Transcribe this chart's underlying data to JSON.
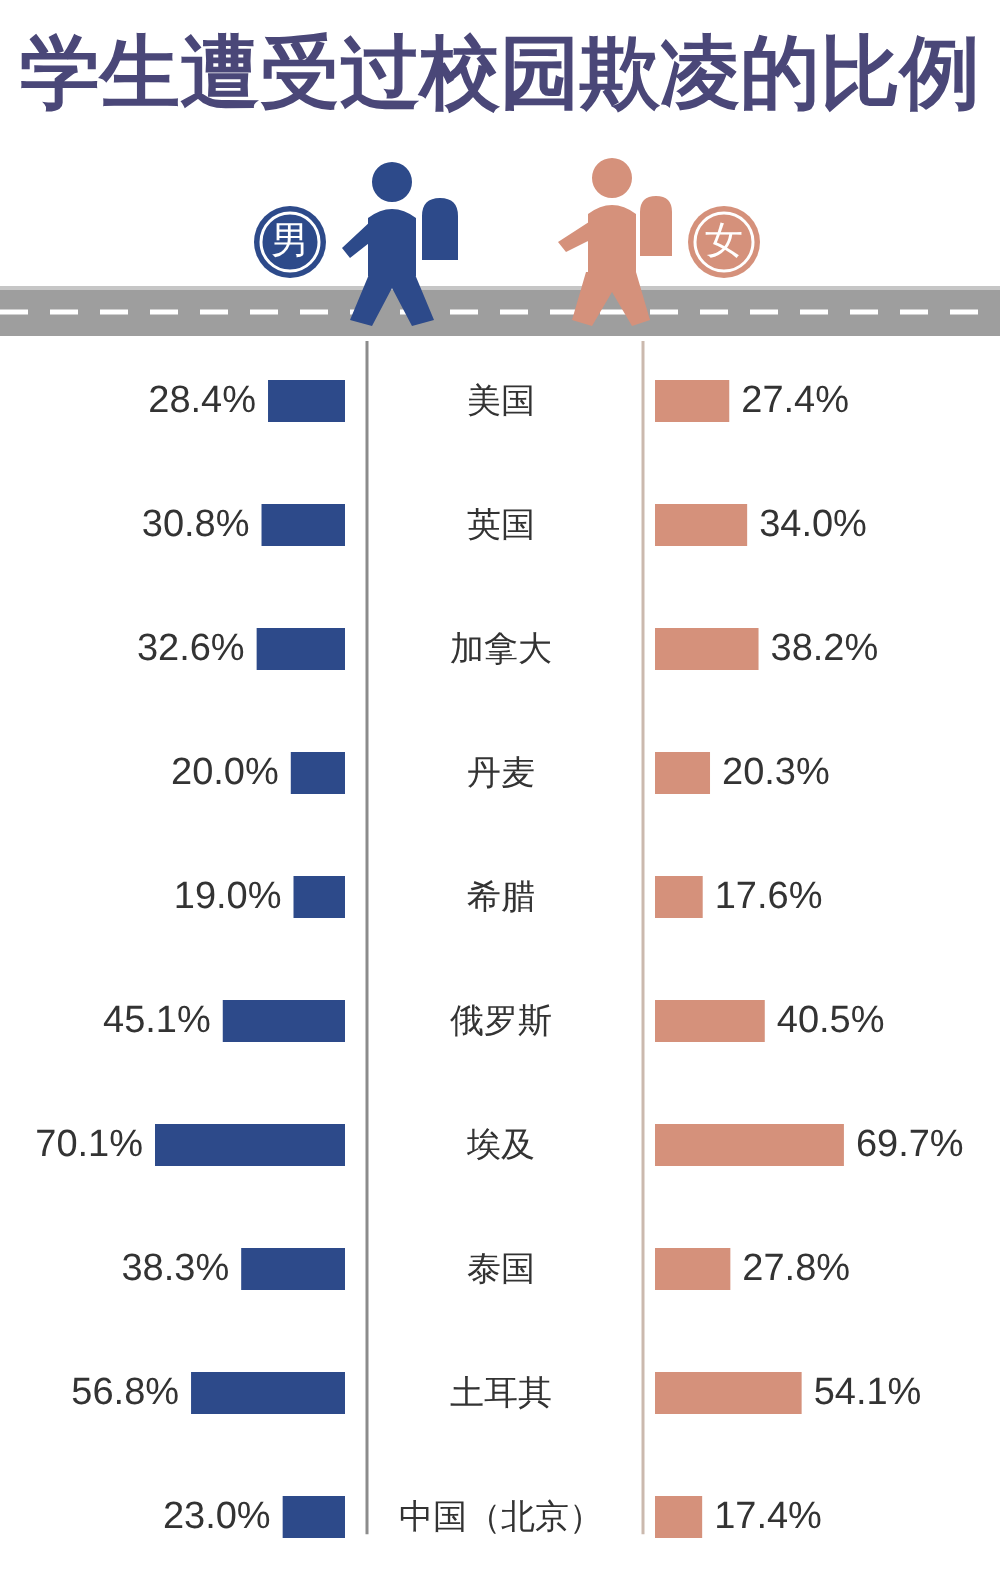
{
  "chart_data": [
    {
      "type": "bar",
      "orientation": "horizontal",
      "title": "学生遭受过校园欺凌的比例",
      "categories": [
        "美国",
        "英国",
        "加拿大",
        "丹麦",
        "希腊",
        "俄罗斯",
        "埃及",
        "泰国",
        "土耳其",
        "中国（北京）"
      ],
      "series": [
        {
          "name": "男",
          "color": "#2d4a8a",
          "values": [
            28.4,
            30.8,
            32.6,
            20.0,
            19.0,
            45.1,
            70.1,
            38.3,
            56.8,
            23.0
          ],
          "value_labels": [
            "28.4%",
            "30.8%",
            "32.6%",
            "20.0%",
            "19.0%",
            "45.1%",
            "70.1%",
            "38.3%",
            "56.8%",
            "23.0%"
          ]
        }
      ],
      "legend": "top"
    },
    {
      "type": "bar",
      "orientation": "horizontal",
      "categories": [
        null,
        null,
        null,
        null,
        null,
        null,
        null,
        null,
        null,
        null
      ],
      "series": [
        {
          "name": "女",
          "color": "#d5917b",
          "values": [
            27.4,
            34.0,
            38.2,
            20.3,
            17.6,
            40.5,
            69.7,
            27.8,
            54.1,
            17.4
          ],
          "value_labels": [
            "27.4%",
            "34.0%",
            "38.2%",
            "20.3%",
            "17.6%",
            "40.5%",
            "69.7%",
            "27.8%",
            "54.1%",
            "17.4%"
          ]
        }
      ],
      "legend": "top"
    }
  ]
}
